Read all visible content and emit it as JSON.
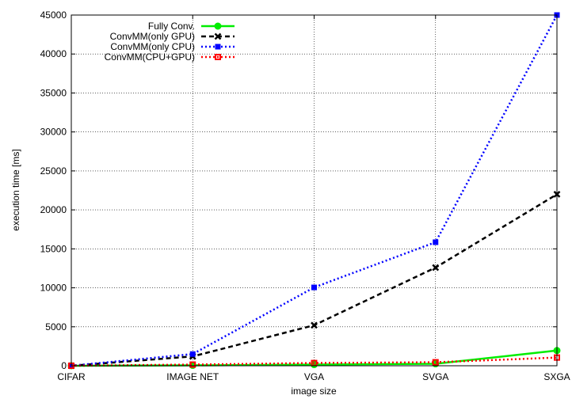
{
  "chart_data": {
    "type": "line",
    "xlabel": "image size",
    "ylabel": "execution time [ms]",
    "categories": [
      "CIFAR",
      "IMAGE NET",
      "VGA",
      "SVGA",
      "SXGA"
    ],
    "ylim": [
      0,
      45000
    ],
    "yticks": [
      0,
      5000,
      10000,
      15000,
      20000,
      25000,
      30000,
      35000,
      40000,
      45000
    ],
    "grid": true,
    "legend_position": "top-left",
    "series": [
      {
        "name": "Fully Conv.",
        "color": "#00ee00",
        "dash": "solid",
        "marker": "circle",
        "values": [
          0,
          50,
          150,
          250,
          1950
        ]
      },
      {
        "name": "ConvMM(only GPU)",
        "color": "#000000",
        "dash": "dashed",
        "marker": "x",
        "values": [
          0,
          1200,
          5200,
          12600,
          22000
        ]
      },
      {
        "name": "ConvMM(only CPU)",
        "color": "#0000ff",
        "dash": "dotted",
        "marker": "filled-square",
        "values": [
          0,
          1500,
          10050,
          15850,
          45000
        ]
      },
      {
        "name": "ConvMM(CPU+GPU)",
        "color": "#ff0000",
        "dash": "dotted",
        "marker": "open-square",
        "values": [
          0,
          150,
          350,
          450,
          1050
        ]
      }
    ]
  }
}
